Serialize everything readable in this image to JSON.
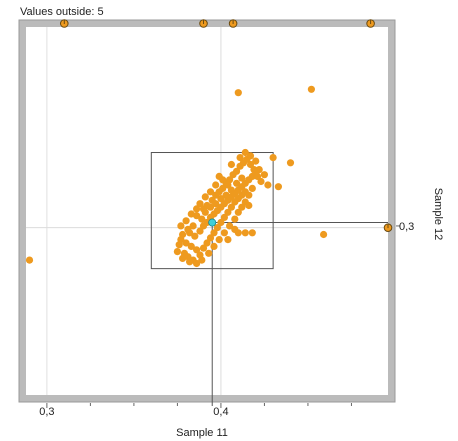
{
  "chart_data": {
    "type": "scatter",
    "title": "Values outside: 5",
    "xlabel": "Sample 11",
    "ylabel": "Sample 12",
    "x_ticks": [
      "0,3",
      "0,4"
    ],
    "y_ticks": [
      "0,3"
    ],
    "xlim": [
      0.288,
      0.496
    ],
    "ylim": [
      0.201,
      0.4165
    ],
    "grid": false,
    "selected_point": {
      "x": 0.395,
      "y": 0.302
    },
    "zoom_box": {
      "x0": 0.36,
      "x1": 0.43,
      "y0": 0.275,
      "y1": 0.343
    },
    "outside_markers": [
      {
        "edge": "top",
        "x": 0.31
      },
      {
        "edge": "top",
        "x": 0.39
      },
      {
        "edge": "top",
        "x": 0.407
      },
      {
        "edge": "top",
        "x": 0.486
      },
      {
        "edge": "right",
        "y": 0.299
      }
    ],
    "colors": {
      "points": "#ee9a1f",
      "selected": "#40d0d8",
      "frame": "#bbbbbb"
    },
    "points": [
      [
        0.29,
        0.28
      ],
      [
        0.41,
        0.378
      ],
      [
        0.452,
        0.38
      ],
      [
        0.459,
        0.295
      ],
      [
        0.44,
        0.337
      ],
      [
        0.43,
        0.34
      ],
      [
        0.425,
        0.33
      ],
      [
        0.427,
        0.324
      ],
      [
        0.433,
        0.323
      ],
      [
        0.382,
        0.296
      ],
      [
        0.385,
        0.294
      ],
      [
        0.388,
        0.297
      ],
      [
        0.39,
        0.3
      ],
      [
        0.392,
        0.302
      ],
      [
        0.394,
        0.305
      ],
      [
        0.396,
        0.307
      ],
      [
        0.398,
        0.309
      ],
      [
        0.4,
        0.311
      ],
      [
        0.402,
        0.313
      ],
      [
        0.404,
        0.315
      ],
      [
        0.406,
        0.317
      ],
      [
        0.408,
        0.319
      ],
      [
        0.41,
        0.321
      ],
      [
        0.412,
        0.323
      ],
      [
        0.414,
        0.325
      ],
      [
        0.416,
        0.327
      ],
      [
        0.418,
        0.329
      ],
      [
        0.42,
        0.331
      ],
      [
        0.422,
        0.333
      ],
      [
        0.38,
        0.29
      ],
      [
        0.383,
        0.288
      ],
      [
        0.386,
        0.286
      ],
      [
        0.379,
        0.284
      ],
      [
        0.377,
        0.292
      ],
      [
        0.381,
        0.282
      ],
      [
        0.384,
        0.28
      ],
      [
        0.388,
        0.283
      ],
      [
        0.39,
        0.287
      ],
      [
        0.392,
        0.29
      ],
      [
        0.394,
        0.293
      ],
      [
        0.396,
        0.296
      ],
      [
        0.398,
        0.299
      ],
      [
        0.4,
        0.302
      ],
      [
        0.402,
        0.305
      ],
      [
        0.404,
        0.308
      ],
      [
        0.406,
        0.311
      ],
      [
        0.408,
        0.314
      ],
      [
        0.41,
        0.316
      ],
      [
        0.412,
        0.318
      ],
      [
        0.414,
        0.32
      ],
      [
        0.39,
        0.31
      ],
      [
        0.392,
        0.312
      ],
      [
        0.395,
        0.315
      ],
      [
        0.397,
        0.318
      ],
      [
        0.399,
        0.32
      ],
      [
        0.401,
        0.322
      ],
      [
        0.403,
        0.325
      ],
      [
        0.405,
        0.327
      ],
      [
        0.407,
        0.33
      ],
      [
        0.409,
        0.332
      ],
      [
        0.411,
        0.335
      ],
      [
        0.413,
        0.337
      ],
      [
        0.415,
        0.339
      ],
      [
        0.417,
        0.336
      ],
      [
        0.419,
        0.333
      ],
      [
        0.421,
        0.329
      ],
      [
        0.423,
        0.326
      ],
      [
        0.418,
        0.322
      ],
      [
        0.416,
        0.318
      ],
      [
        0.386,
        0.306
      ],
      [
        0.389,
        0.304
      ],
      [
        0.391,
        0.308
      ],
      [
        0.394,
        0.311
      ],
      [
        0.397,
        0.313
      ],
      [
        0.4,
        0.316
      ],
      [
        0.403,
        0.318
      ],
      [
        0.406,
        0.321
      ],
      [
        0.409,
        0.325
      ],
      [
        0.412,
        0.328
      ],
      [
        0.384,
        0.3
      ],
      [
        0.381,
        0.298
      ],
      [
        0.378,
        0.295
      ],
      [
        0.376,
        0.289
      ],
      [
        0.375,
        0.285
      ],
      [
        0.378,
        0.281
      ],
      [
        0.382,
        0.279
      ],
      [
        0.386,
        0.278
      ],
      [
        0.389,
        0.28
      ],
      [
        0.393,
        0.284
      ],
      [
        0.396,
        0.288
      ],
      [
        0.399,
        0.292
      ],
      [
        0.402,
        0.296
      ],
      [
        0.405,
        0.3
      ],
      [
        0.408,
        0.304
      ],
      [
        0.41,
        0.308
      ],
      [
        0.412,
        0.311
      ],
      [
        0.414,
        0.314
      ],
      [
        0.416,
        0.312
      ],
      [
        0.404,
        0.324
      ],
      [
        0.401,
        0.327
      ],
      [
        0.399,
        0.329
      ],
      [
        0.397,
        0.324
      ],
      [
        0.394,
        0.32
      ],
      [
        0.391,
        0.317
      ],
      [
        0.388,
        0.313
      ],
      [
        0.386,
        0.31
      ],
      [
        0.383,
        0.307
      ],
      [
        0.38,
        0.303
      ],
      [
        0.377,
        0.3
      ],
      [
        0.41,
        0.296
      ],
      [
        0.414,
        0.296
      ],
      [
        0.418,
        0.296
      ],
      [
        0.408,
        0.298
      ],
      [
        0.404,
        0.292
      ],
      [
        0.411,
        0.34
      ],
      [
        0.414,
        0.343
      ],
      [
        0.417,
        0.341
      ],
      [
        0.42,
        0.338
      ],
      [
        0.406,
        0.336
      ]
    ]
  }
}
